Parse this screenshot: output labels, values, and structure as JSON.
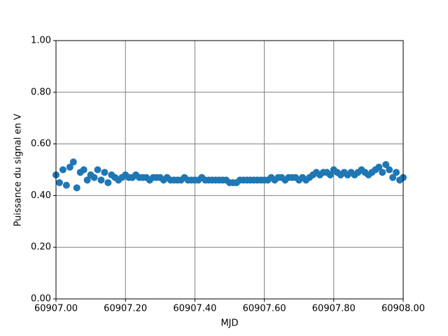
{
  "chart_data": {
    "type": "scatter",
    "x_label": "MJD",
    "y_label": "Puissance du signal en V",
    "color": "#1f77b4",
    "grid": true,
    "grid_color": "#808080",
    "xlim": [
      60907.0,
      60908.0
    ],
    "ylim": [
      0,
      1
    ],
    "xticks": [
      {
        "value": 60907.0,
        "label": "60907.00"
      },
      {
        "value": 60907.2,
        "label": "60907.20"
      },
      {
        "value": 60907.4,
        "label": "60907.40"
      },
      {
        "value": 60907.6,
        "label": "60907.60"
      },
      {
        "value": 60907.8,
        "label": "60907.80"
      },
      {
        "value": 60908.0,
        "label": "60908.00"
      }
    ],
    "yticks": [
      {
        "value": 0,
        "label": "0.00"
      },
      {
        "value": 0.2,
        "label": "0.20"
      },
      {
        "value": 0.4,
        "label": "0.40"
      },
      {
        "value": 0.6,
        "label": "0.60"
      },
      {
        "value": 0.8,
        "label": "0.80"
      },
      {
        "value": 1,
        "label": "1.00"
      }
    ],
    "x": [
      60907.0,
      60907.01,
      60907.02,
      60907.03,
      60907.04,
      60907.05,
      60907.06,
      60907.07,
      60907.08,
      60907.09,
      60907.1,
      60907.11,
      60907.12,
      60907.13,
      60907.14,
      60907.15,
      60907.16,
      60907.17,
      60907.18,
      60907.19,
      60907.2,
      60907.21,
      60907.22,
      60907.23,
      60907.24,
      60907.25,
      60907.26,
      60907.27,
      60907.28,
      60907.29,
      60907.3,
      60907.31,
      60907.32,
      60907.33,
      60907.34,
      60907.35,
      60907.36,
      60907.37,
      60907.38,
      60907.39,
      60907.4,
      60907.41,
      60907.42,
      60907.43,
      60907.44,
      60907.45,
      60907.46,
      60907.47,
      60907.48,
      60907.49,
      60907.5,
      60907.51,
      60907.52,
      60907.53,
      60907.54,
      60907.55,
      60907.56,
      60907.57,
      60907.58,
      60907.59,
      60907.6,
      60907.61,
      60907.62,
      60907.63,
      60907.64,
      60907.65,
      60907.66,
      60907.67,
      60907.68,
      60907.69,
      60907.7,
      60907.71,
      60907.72,
      60907.73,
      60907.74,
      60907.75,
      60907.76,
      60907.77,
      60907.78,
      60907.79,
      60907.8,
      60907.81,
      60907.82,
      60907.83,
      60907.84,
      60907.85,
      60907.86,
      60907.87,
      60907.88,
      60907.89,
      60907.9,
      60907.91,
      60907.92,
      60907.93,
      60907.94,
      60907.95,
      60907.96,
      60907.97,
      60907.98,
      60907.99,
      60908.0
    ],
    "values": [
      0.48,
      0.45,
      0.5,
      0.44,
      0.51,
      0.53,
      0.43,
      0.49,
      0.5,
      0.46,
      0.48,
      0.47,
      0.5,
      0.46,
      0.49,
      0.45,
      0.48,
      0.47,
      0.46,
      0.47,
      0.48,
      0.47,
      0.47,
      0.48,
      0.47,
      0.47,
      0.47,
      0.46,
      0.47,
      0.47,
      0.47,
      0.46,
      0.47,
      0.46,
      0.46,
      0.46,
      0.46,
      0.47,
      0.46,
      0.46,
      0.46,
      0.46,
      0.47,
      0.46,
      0.46,
      0.46,
      0.46,
      0.46,
      0.46,
      0.46,
      0.45,
      0.45,
      0.45,
      0.46,
      0.46,
      0.46,
      0.46,
      0.46,
      0.46,
      0.46,
      0.46,
      0.46,
      0.47,
      0.46,
      0.47,
      0.47,
      0.46,
      0.47,
      0.47,
      0.47,
      0.46,
      0.47,
      0.46,
      0.47,
      0.48,
      0.49,
      0.48,
      0.49,
      0.49,
      0.48,
      0.5,
      0.49,
      0.48,
      0.49,
      0.48,
      0.49,
      0.48,
      0.49,
      0.5,
      0.49,
      0.48,
      0.49,
      0.5,
      0.51,
      0.49,
      0.52,
      0.5,
      0.47,
      0.49,
      0.46,
      0.47
    ]
  }
}
